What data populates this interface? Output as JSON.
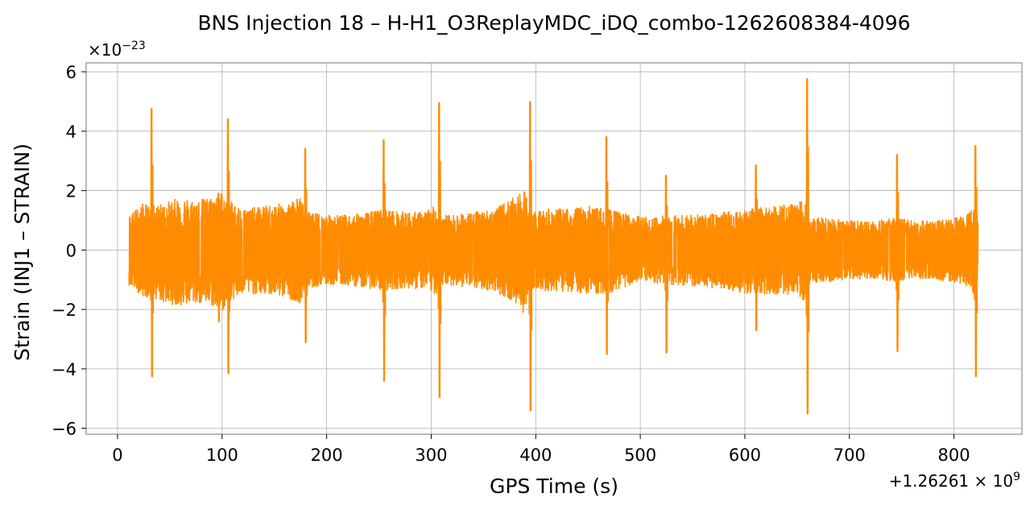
{
  "chart_data": {
    "type": "line",
    "title": "BNS Injection 18 – H-H1_O3ReplayMDC_iDQ_combo-1262608384-4096",
    "xlabel": "GPS Time (s)",
    "ylabel": "Strain (INJ1 – STRAIN)",
    "x_offset_label": "+1.26261×10^9",
    "y_scale_label": "×10^−23",
    "xlim": [
      -30,
      865
    ],
    "ylim": [
      -6.2,
      6.3
    ],
    "x_ticks": [
      0,
      100,
      200,
      300,
      400,
      500,
      600,
      700,
      800
    ],
    "x_tick_labels": [
      "0",
      "100",
      "200",
      "300",
      "400",
      "500",
      "600",
      "700",
      "800"
    ],
    "y_ticks": [
      -6,
      -4,
      -2,
      0,
      2,
      4,
      6
    ],
    "y_tick_labels": [
      "−6",
      "−4",
      "−2",
      "0",
      "2",
      "4",
      "6"
    ],
    "grid": true,
    "series_color": "#ff8c00",
    "series": [
      {
        "x_range": [
          11,
          823
        ],
        "envelope": {
          "x": [
            11,
            25,
            33,
            45,
            60,
            75,
            90,
            100,
            106,
            120,
            140,
            160,
            175,
            180,
            200,
            220,
            240,
            255,
            270,
            290,
            305,
            308,
            320,
            340,
            360,
            380,
            390,
            395,
            410,
            430,
            450,
            468,
            490,
            510,
            525,
            540,
            560,
            580,
            600,
            611,
            630,
            650,
            660,
            662,
            680,
            700,
            720,
            740,
            746,
            760,
            780,
            800,
            815,
            821,
            823
          ],
          "upper": [
            1.2,
            1.6,
            1.5,
            1.6,
            1.8,
            1.7,
            1.8,
            2.0,
            1.7,
            1.4,
            1.5,
            1.6,
            1.8,
            1.3,
            1.2,
            1.2,
            1.3,
            1.4,
            1.3,
            1.3,
            1.5,
            1.2,
            1.2,
            1.3,
            1.4,
            1.8,
            2.0,
            1.3,
            1.4,
            1.4,
            1.5,
            1.4,
            1.2,
            1.1,
            1.2,
            1.2,
            1.2,
            1.3,
            1.4,
            1.4,
            1.5,
            1.6,
            1.8,
            1.1,
            1.1,
            1.0,
            1.0,
            1.1,
            1.1,
            1.0,
            1.0,
            1.1,
            1.3,
            1.6,
            0.9
          ],
          "lower": [
            -1.2,
            -1.6,
            -1.6,
            -1.8,
            -1.9,
            -1.8,
            -1.9,
            -2.1,
            -1.8,
            -1.5,
            -1.5,
            -1.6,
            -1.8,
            -1.3,
            -1.2,
            -1.2,
            -1.3,
            -1.4,
            -1.3,
            -1.3,
            -1.5,
            -1.2,
            -1.2,
            -1.3,
            -1.4,
            -1.8,
            -2.2,
            -1.3,
            -1.4,
            -1.4,
            -1.5,
            -1.5,
            -1.2,
            -1.1,
            -1.2,
            -1.2,
            -1.3,
            -1.3,
            -1.5,
            -1.5,
            -1.5,
            -1.6,
            -1.8,
            -1.1,
            -1.1,
            -1.0,
            -1.0,
            -1.1,
            -1.2,
            -1.0,
            -1.0,
            -1.1,
            -1.3,
            -1.6,
            -0.9
          ]
        },
        "spikes": [
          {
            "x": 33,
            "max": 4.75,
            "min": -4.25
          },
          {
            "x": 97,
            "max": 1.9,
            "min": -2.4
          },
          {
            "x": 106,
            "max": 4.4,
            "min": -4.15
          },
          {
            "x": 180,
            "max": 3.4,
            "min": -3.1
          },
          {
            "x": 255,
            "max": 3.7,
            "min": -4.4
          },
          {
            "x": 308,
            "max": 4.95,
            "min": -4.95
          },
          {
            "x": 395,
            "max": 4.98,
            "min": -5.4
          },
          {
            "x": 468,
            "max": 3.8,
            "min": -3.5
          },
          {
            "x": 525,
            "max": 2.5,
            "min": -3.45
          },
          {
            "x": 611,
            "max": 2.85,
            "min": -2.7
          },
          {
            "x": 660,
            "max": 5.75,
            "min": -5.5
          },
          {
            "x": 746,
            "max": 3.2,
            "min": -3.4
          },
          {
            "x": 821,
            "max": 3.5,
            "min": -4.25
          }
        ]
      }
    ]
  }
}
